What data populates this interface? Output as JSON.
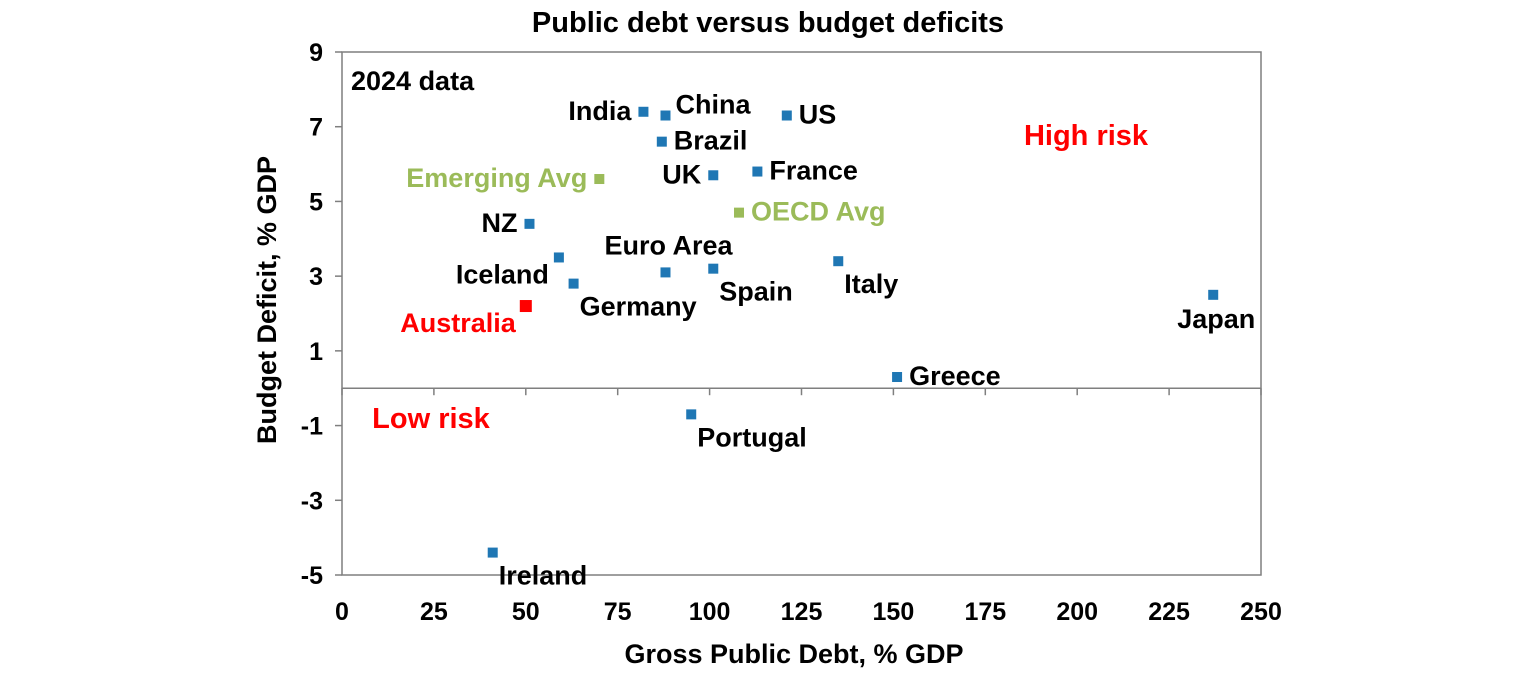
{
  "chart_data": {
    "type": "scatter",
    "title": "Public debt versus budget deficits",
    "subtitle": "2024 data",
    "xlabel": "Gross Public Debt, % GDP",
    "ylabel": "Budget Deficit, % GDP",
    "xlim": [
      0,
      250
    ],
    "ylim": [
      -5,
      9
    ],
    "xticks": [
      0,
      25,
      50,
      75,
      100,
      125,
      150,
      175,
      200,
      225,
      250
    ],
    "yticks": [
      9,
      7,
      5,
      3,
      1,
      -1,
      -3,
      -5
    ],
    "grid": false,
    "annotations": [
      {
        "text": "High risk",
        "color": "#ff0000"
      },
      {
        "text": "Low risk",
        "color": "#ff0000"
      }
    ],
    "points": [
      {
        "label": "India",
        "x": 82,
        "y": 7.4,
        "color": "#1f77b4",
        "label_side": "left"
      },
      {
        "label": "China",
        "x": 88,
        "y": 7.3,
        "color": "#1f77b4",
        "label_side": "upper-right"
      },
      {
        "label": "US",
        "x": 121,
        "y": 7.3,
        "color": "#1f77b4",
        "label_side": "right"
      },
      {
        "label": "Brazil",
        "x": 87,
        "y": 6.6,
        "color": "#1f77b4",
        "label_side": "right"
      },
      {
        "label": "UK",
        "x": 101,
        "y": 5.7,
        "color": "#1f77b4",
        "label_side": "left"
      },
      {
        "label": "France",
        "x": 113,
        "y": 5.8,
        "color": "#1f77b4",
        "label_side": "right"
      },
      {
        "label": "Emerging Avg",
        "x": 70,
        "y": 5.6,
        "color": "#9bbb59",
        "label_side": "left"
      },
      {
        "label": "OECD Avg",
        "x": 108,
        "y": 4.7,
        "color": "#9bbb59",
        "label_side": "right"
      },
      {
        "label": "NZ",
        "x": 51,
        "y": 4.4,
        "color": "#1f77b4",
        "label_side": "left"
      },
      {
        "label": "Euro Area",
        "x": 88,
        "y": 3.1,
        "color": "#1f77b4",
        "label_side": "above"
      },
      {
        "label": "Iceland",
        "x": 59,
        "y": 3.5,
        "color": "#1f77b4",
        "label_side": "lower-left"
      },
      {
        "label": "Spain",
        "x": 101,
        "y": 3.2,
        "color": "#1f77b4",
        "label_side": "lower-right"
      },
      {
        "label": "Italy",
        "x": 135,
        "y": 3.4,
        "color": "#1f77b4",
        "label_side": "lower-right"
      },
      {
        "label": "Germany",
        "x": 63,
        "y": 2.8,
        "color": "#1f77b4",
        "label_side": "lower-right"
      },
      {
        "label": "Australia",
        "x": 50,
        "y": 2.2,
        "color": "#ff0000",
        "label_side": "lower-left"
      },
      {
        "label": "Japan",
        "x": 237,
        "y": 2.5,
        "color": "#1f77b4",
        "label_side": "below"
      },
      {
        "label": "Greece",
        "x": 151,
        "y": 0.3,
        "color": "#1f77b4",
        "label_side": "right"
      },
      {
        "label": "Portugal",
        "x": 95,
        "y": -0.7,
        "color": "#1f77b4",
        "label_side": "lower-right"
      },
      {
        "label": "Ireland",
        "x": 41,
        "y": -4.4,
        "color": "#1f77b4",
        "label_side": "lower-right"
      }
    ]
  }
}
